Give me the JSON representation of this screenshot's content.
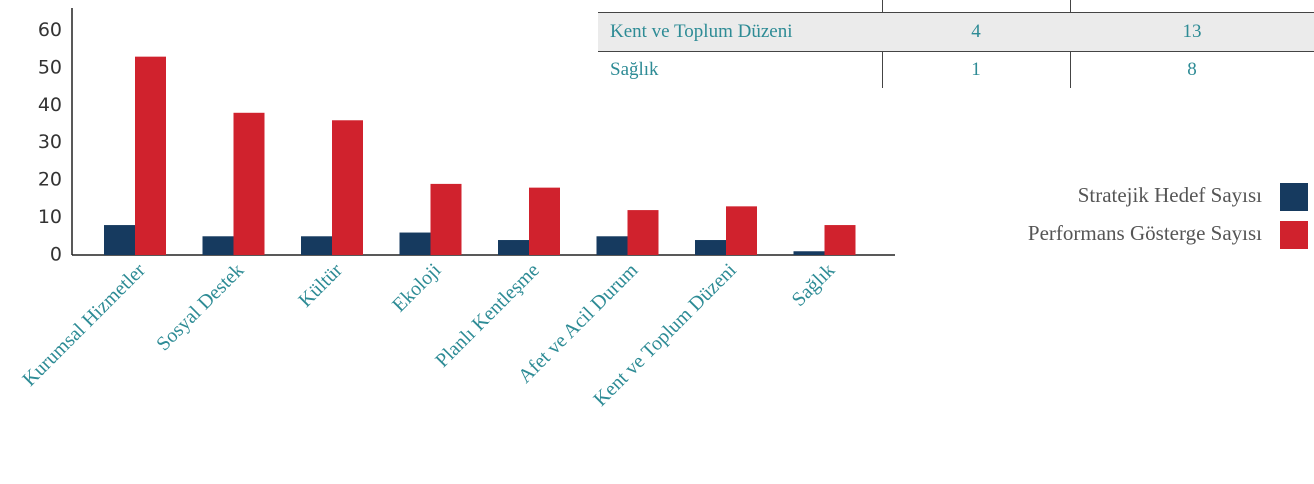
{
  "chart_data": {
    "type": "bar",
    "categories": [
      "Kurumsal Hizmetler",
      "Sosyal Destek",
      "Kültür",
      "Ekoloji",
      "Planlı Kentleşme",
      "Afet ve Acil Durum",
      "Kent ve Toplum Düzeni",
      "Sağlık"
    ],
    "series": [
      {
        "name": "Stratejik Hedef Sayısı",
        "color": "#163a5f",
        "values": [
          8,
          5,
          5,
          6,
          4,
          5,
          4,
          1
        ]
      },
      {
        "name": "Performans Gösterge Sayısı",
        "color": "#d0222d",
        "values": [
          53,
          38,
          36,
          19,
          18,
          12,
          13,
          8
        ]
      }
    ],
    "ylim": [
      0,
      66
    ],
    "yticks": [
      0,
      10,
      20,
      30,
      40,
      50,
      60
    ],
    "grid": false,
    "legend": "right"
  },
  "table": {
    "rows": [
      [
        "Kent ve Toplum Düzeni",
        "4",
        "13"
      ],
      [
        "Sağlık",
        "1",
        "8"
      ]
    ]
  }
}
